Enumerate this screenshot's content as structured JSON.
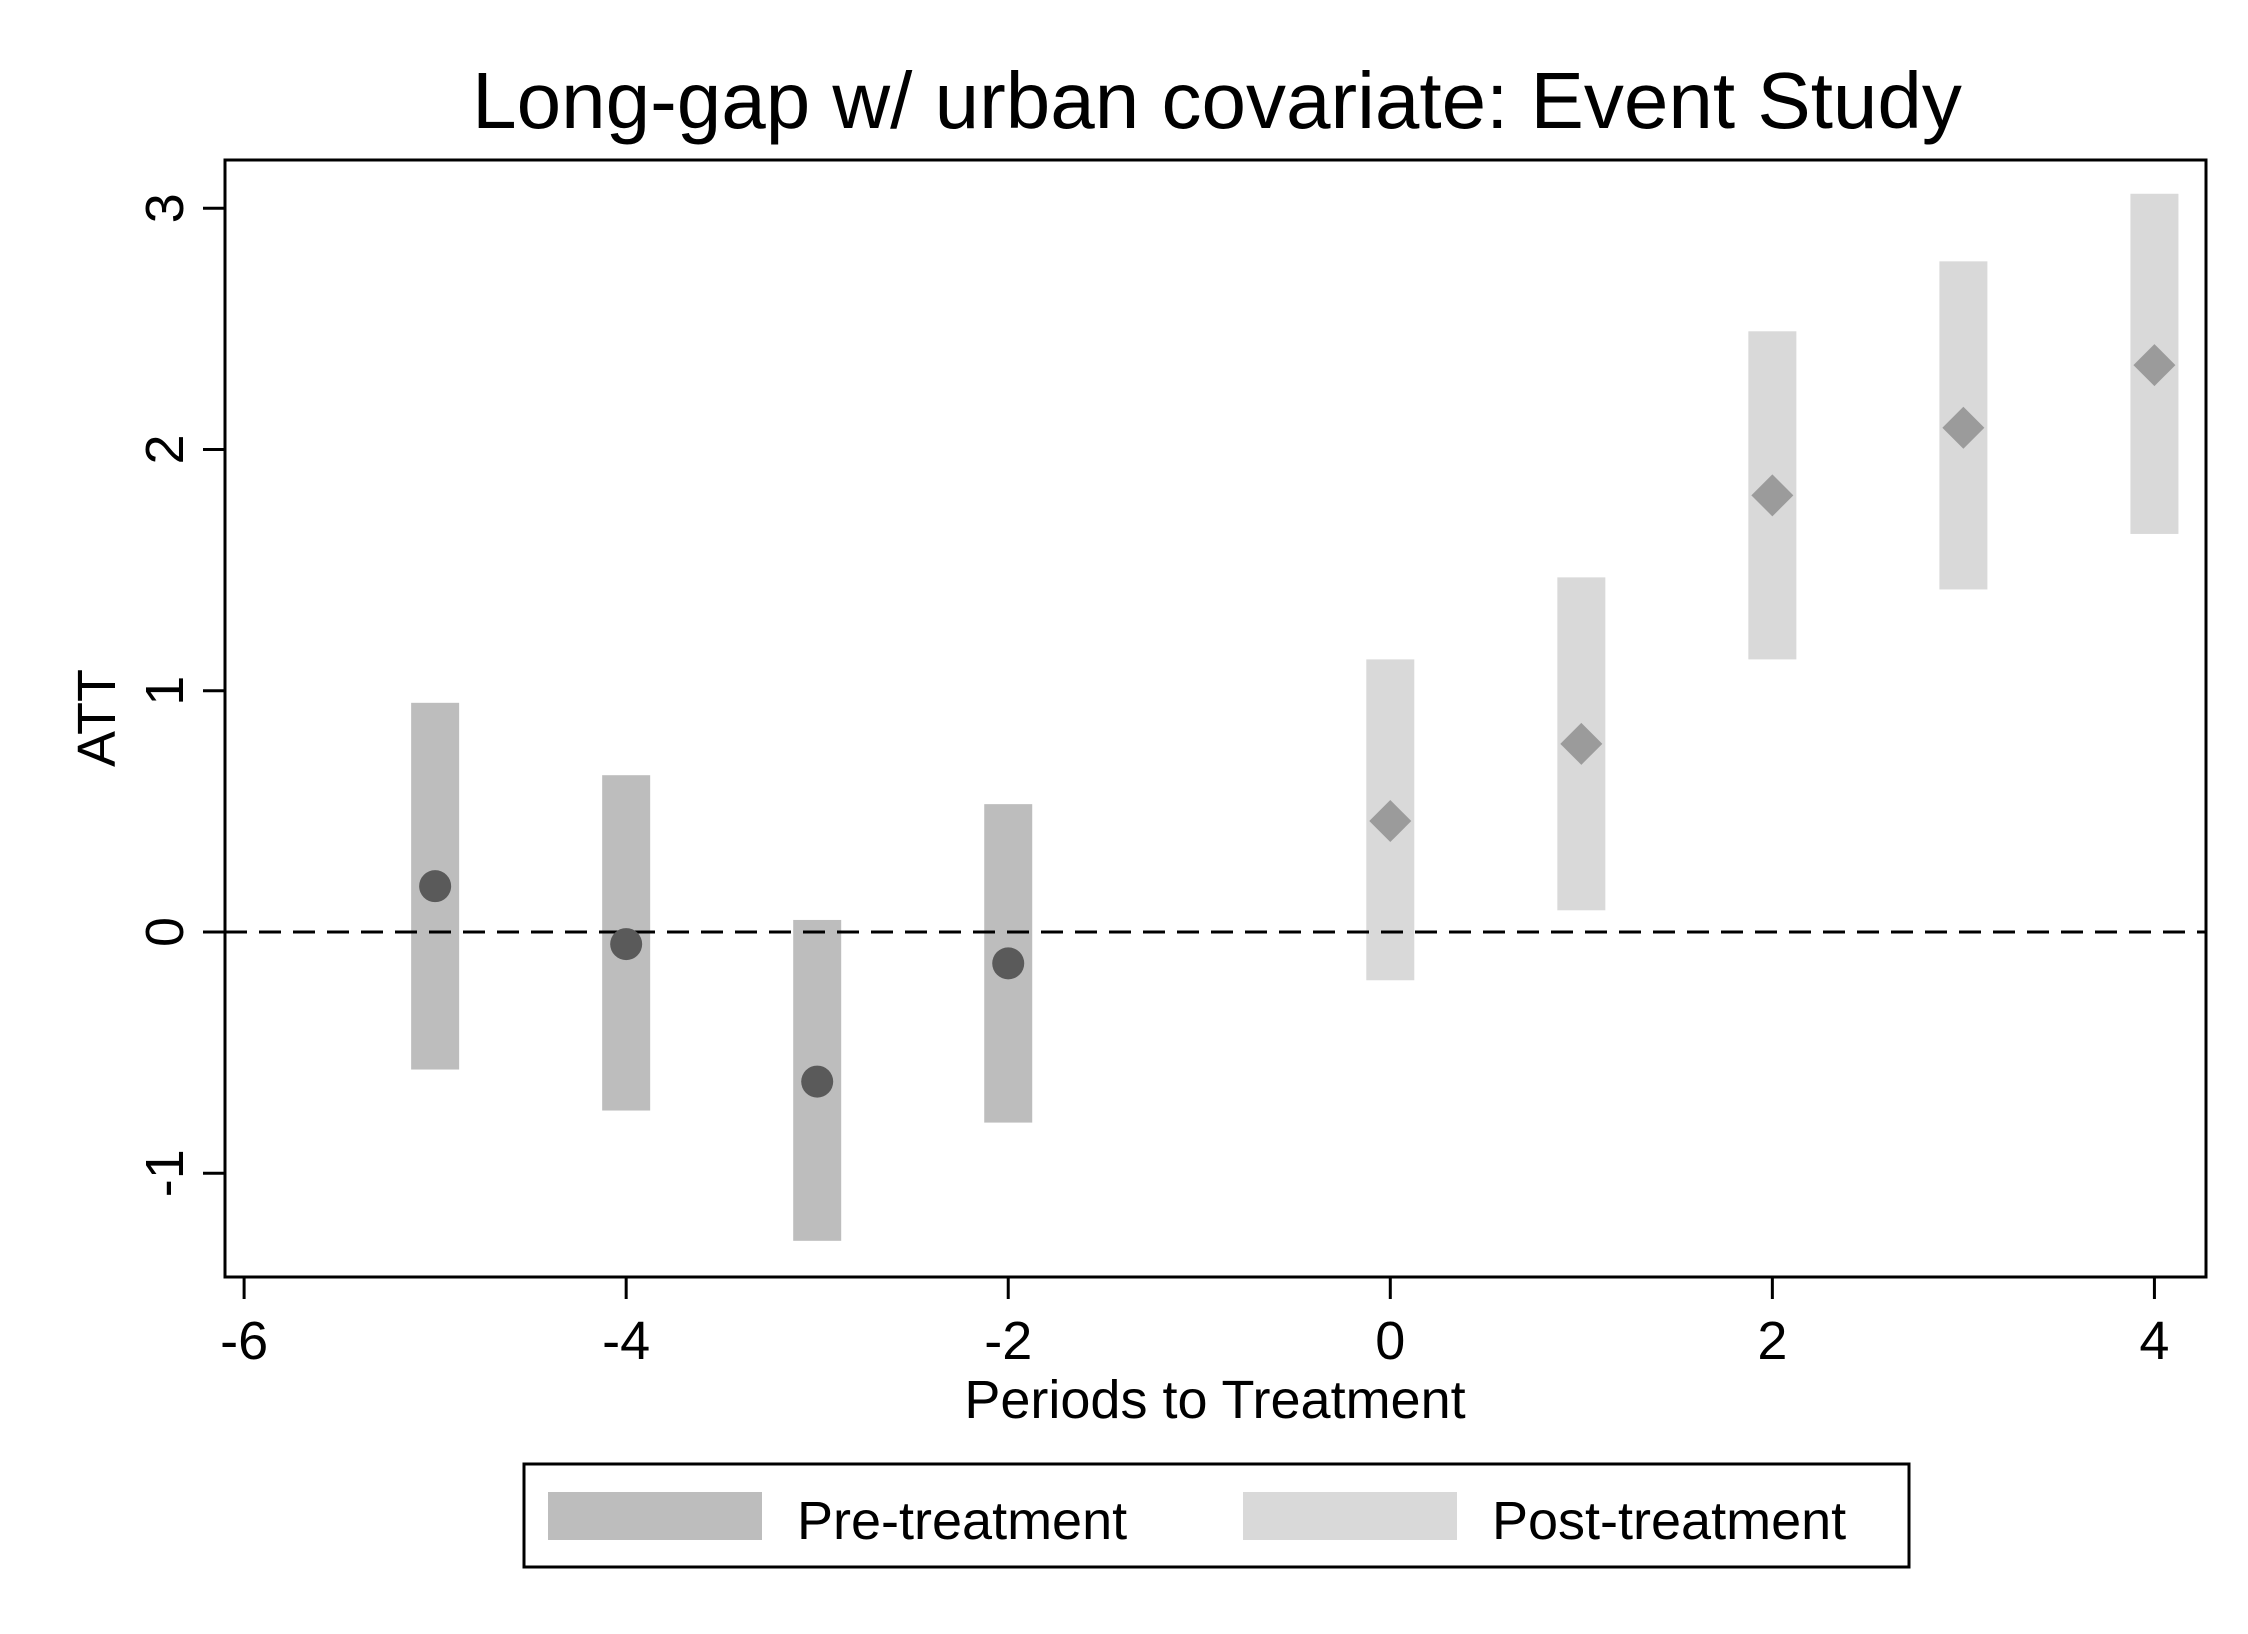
{
  "chart_data": {
    "type": "scatter",
    "title": "Long-gap w/ urban covariate: Event Study",
    "xlabel": "Periods to Treatment",
    "ylabel": "ATT",
    "xlim": [
      -6.1,
      4.27
    ],
    "ylim": [
      -1.43,
      3.2
    ],
    "x_ticks": [
      -6,
      -4,
      -2,
      0,
      2,
      4
    ],
    "x_tick_labels": [
      "-6",
      "-4",
      "-2",
      "0",
      "2",
      "4"
    ],
    "y_ticks": [
      -1,
      0,
      1,
      2,
      3
    ],
    "y_tick_labels": [
      "-1",
      "0",
      "1",
      "2",
      "3"
    ],
    "reference_line": {
      "y": 0,
      "style": "dashed"
    },
    "grid": false,
    "legend_position": "bottom-center",
    "series": [
      {
        "name": "Pre-treatment",
        "color_ci": "#bdbdbd",
        "color_point": "#5a5a5a",
        "marker": "circle",
        "points": [
          {
            "x": -5,
            "y": 0.19,
            "ci_low": -0.57,
            "ci_high": 0.95
          },
          {
            "x": -4,
            "y": -0.05,
            "ci_low": -0.74,
            "ci_high": 0.65
          },
          {
            "x": -3,
            "y": -0.62,
            "ci_low": -1.28,
            "ci_high": 0.05
          },
          {
            "x": -2,
            "y": -0.13,
            "ci_low": -0.79,
            "ci_high": 0.53
          }
        ]
      },
      {
        "name": "Post-treatment",
        "color_ci": "#d9d9d9",
        "color_point": "#9b9b9b",
        "marker": "diamond",
        "points": [
          {
            "x": 0,
            "y": 0.46,
            "ci_low": -0.2,
            "ci_high": 1.13
          },
          {
            "x": 1,
            "y": 0.78,
            "ci_low": 0.09,
            "ci_high": 1.47
          },
          {
            "x": 2,
            "y": 1.81,
            "ci_low": 1.13,
            "ci_high": 2.49
          },
          {
            "x": 3,
            "y": 2.09,
            "ci_low": 1.42,
            "ci_high": 2.78
          },
          {
            "x": 4,
            "y": 2.35,
            "ci_low": 1.65,
            "ci_high": 3.06
          }
        ]
      }
    ]
  }
}
